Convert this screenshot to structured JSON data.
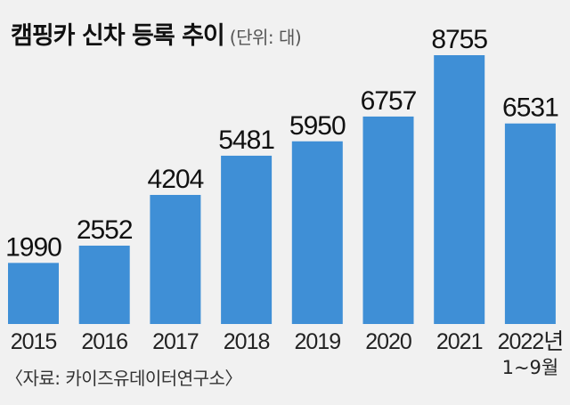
{
  "title": "캠핑카 신차 등록 추이",
  "unit": "(단위: 대)",
  "source": "〈자료: 카이즈유데이터연구소〉",
  "colors": {
    "bar": "#3f8fd6",
    "background": "#f1f1f1"
  },
  "chart_data": {
    "type": "bar",
    "title": "캠핑카 신차 등록 추이",
    "unit": "(단위: 대)",
    "categories": [
      "2015",
      "2016",
      "2017",
      "2018",
      "2019",
      "2020",
      "2021",
      "2022년\n1~9월"
    ],
    "values": [
      1990,
      2552,
      4204,
      5481,
      5950,
      6757,
      8755,
      6531
    ],
    "data_labels": [
      "1990",
      "2552",
      "4204",
      "5481",
      "5950",
      "6757",
      "8755",
      "6531"
    ],
    "ylim": [
      0,
      8755
    ],
    "grid": false,
    "legend": "none"
  }
}
